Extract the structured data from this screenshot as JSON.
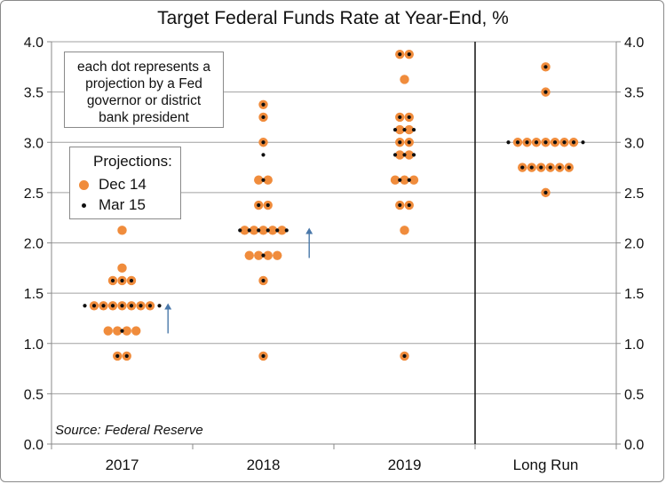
{
  "chart_data": {
    "type": "scatter",
    "title": "Target Federal Funds Rate at Year-End, %",
    "categories": [
      "2017",
      "2018",
      "2019",
      "Long Run"
    ],
    "ylim": [
      0,
      4
    ],
    "yticks": [
      "0.0",
      "0.5",
      "1.0",
      "1.5",
      "2.0",
      "2.5",
      "3.0",
      "3.5",
      "4.0"
    ],
    "grid": true,
    "annotation": [
      "each dot represents a",
      "projection by a Fed",
      "governor or district",
      "bank president"
    ],
    "legend": {
      "title": "Projections:",
      "placement": "top-left",
      "entries": [
        "Dec 14",
        "Mar 15"
      ]
    },
    "colors": {
      "dec14": "#f08c3c",
      "mar15": "#0f0f0f",
      "arrow": "#4a78aa"
    },
    "source": "Source: Federal Reserve",
    "series": [
      {
        "name": "Dec 14",
        "points": [
          {
            "category": "2017",
            "y": 2.125,
            "count": 1
          },
          {
            "category": "2017",
            "y": 1.75,
            "count": 1
          },
          {
            "category": "2017",
            "y": 1.625,
            "count": 3
          },
          {
            "category": "2017",
            "y": 1.375,
            "count": 7
          },
          {
            "category": "2017",
            "y": 1.125,
            "count": 4
          },
          {
            "category": "2017",
            "y": 0.875,
            "count": 2
          },
          {
            "category": "2018",
            "y": 3.375,
            "count": 1
          },
          {
            "category": "2018",
            "y": 3.25,
            "count": 1
          },
          {
            "category": "2018",
            "y": 3.0,
            "count": 1
          },
          {
            "category": "2018",
            "y": 2.625,
            "count": 2
          },
          {
            "category": "2018",
            "y": 2.375,
            "count": 2
          },
          {
            "category": "2018",
            "y": 2.125,
            "count": 5
          },
          {
            "category": "2018",
            "y": 1.875,
            "count": 4
          },
          {
            "category": "2018",
            "y": 1.625,
            "count": 1
          },
          {
            "category": "2018",
            "y": 0.875,
            "count": 1
          },
          {
            "category": "2019",
            "y": 3.875,
            "count": 2
          },
          {
            "category": "2019",
            "y": 3.625,
            "count": 1
          },
          {
            "category": "2019",
            "y": 3.25,
            "count": 2
          },
          {
            "category": "2019",
            "y": 3.125,
            "count": 2
          },
          {
            "category": "2019",
            "y": 3.0,
            "count": 2
          },
          {
            "category": "2019",
            "y": 2.875,
            "count": 2
          },
          {
            "category": "2019",
            "y": 2.625,
            "count": 3
          },
          {
            "category": "2019",
            "y": 2.375,
            "count": 2
          },
          {
            "category": "2019",
            "y": 2.125,
            "count": 1
          },
          {
            "category": "2019",
            "y": 0.875,
            "count": 1
          },
          {
            "category": "Long Run",
            "y": 3.75,
            "count": 1
          },
          {
            "category": "Long Run",
            "y": 3.5,
            "count": 1
          },
          {
            "category": "Long Run",
            "y": 3.0,
            "count": 7
          },
          {
            "category": "Long Run",
            "y": 2.75,
            "count": 6
          },
          {
            "category": "Long Run",
            "y": 2.5,
            "count": 1
          }
        ]
      },
      {
        "name": "Mar 15",
        "points": [
          {
            "category": "2017",
            "y": 1.625,
            "count": 3
          },
          {
            "category": "2017",
            "y": 1.375,
            "count": 9
          },
          {
            "category": "2017",
            "y": 1.125,
            "count": 1
          },
          {
            "category": "2017",
            "y": 0.875,
            "count": 2
          },
          {
            "category": "2018",
            "y": 3.375,
            "count": 1
          },
          {
            "category": "2018",
            "y": 3.25,
            "count": 1
          },
          {
            "category": "2018",
            "y": 3.0,
            "count": 1
          },
          {
            "category": "2018",
            "y": 2.875,
            "count": 1
          },
          {
            "category": "2018",
            "y": 2.625,
            "count": 1
          },
          {
            "category": "2018",
            "y": 2.375,
            "count": 2
          },
          {
            "category": "2018",
            "y": 2.125,
            "count": 6
          },
          {
            "category": "2018",
            "y": 1.875,
            "count": 1
          },
          {
            "category": "2018",
            "y": 1.625,
            "count": 1
          },
          {
            "category": "2018",
            "y": 0.875,
            "count": 1
          },
          {
            "category": "2019",
            "y": 3.875,
            "count": 2
          },
          {
            "category": "2019",
            "y": 3.25,
            "count": 2
          },
          {
            "category": "2019",
            "y": 3.125,
            "count": 3
          },
          {
            "category": "2019",
            "y": 3.0,
            "count": 2
          },
          {
            "category": "2019",
            "y": 2.875,
            "count": 3
          },
          {
            "category": "2019",
            "y": 2.625,
            "count": 2
          },
          {
            "category": "2019",
            "y": 2.375,
            "count": 2
          },
          {
            "category": "2019",
            "y": 0.875,
            "count": 1
          },
          {
            "category": "Long Run",
            "y": 3.75,
            "count": 1
          },
          {
            "category": "Long Run",
            "y": 3.5,
            "count": 1
          },
          {
            "category": "Long Run",
            "y": 3.0,
            "count": 9
          },
          {
            "category": "Long Run",
            "y": 2.75,
            "count": 6
          },
          {
            "category": "Long Run",
            "y": 2.5,
            "count": 1
          }
        ]
      }
    ],
    "arrows": [
      {
        "category": "2017",
        "from": 1.1,
        "to": 1.4
      },
      {
        "category": "2018",
        "from": 1.85,
        "to": 2.15
      }
    ]
  }
}
